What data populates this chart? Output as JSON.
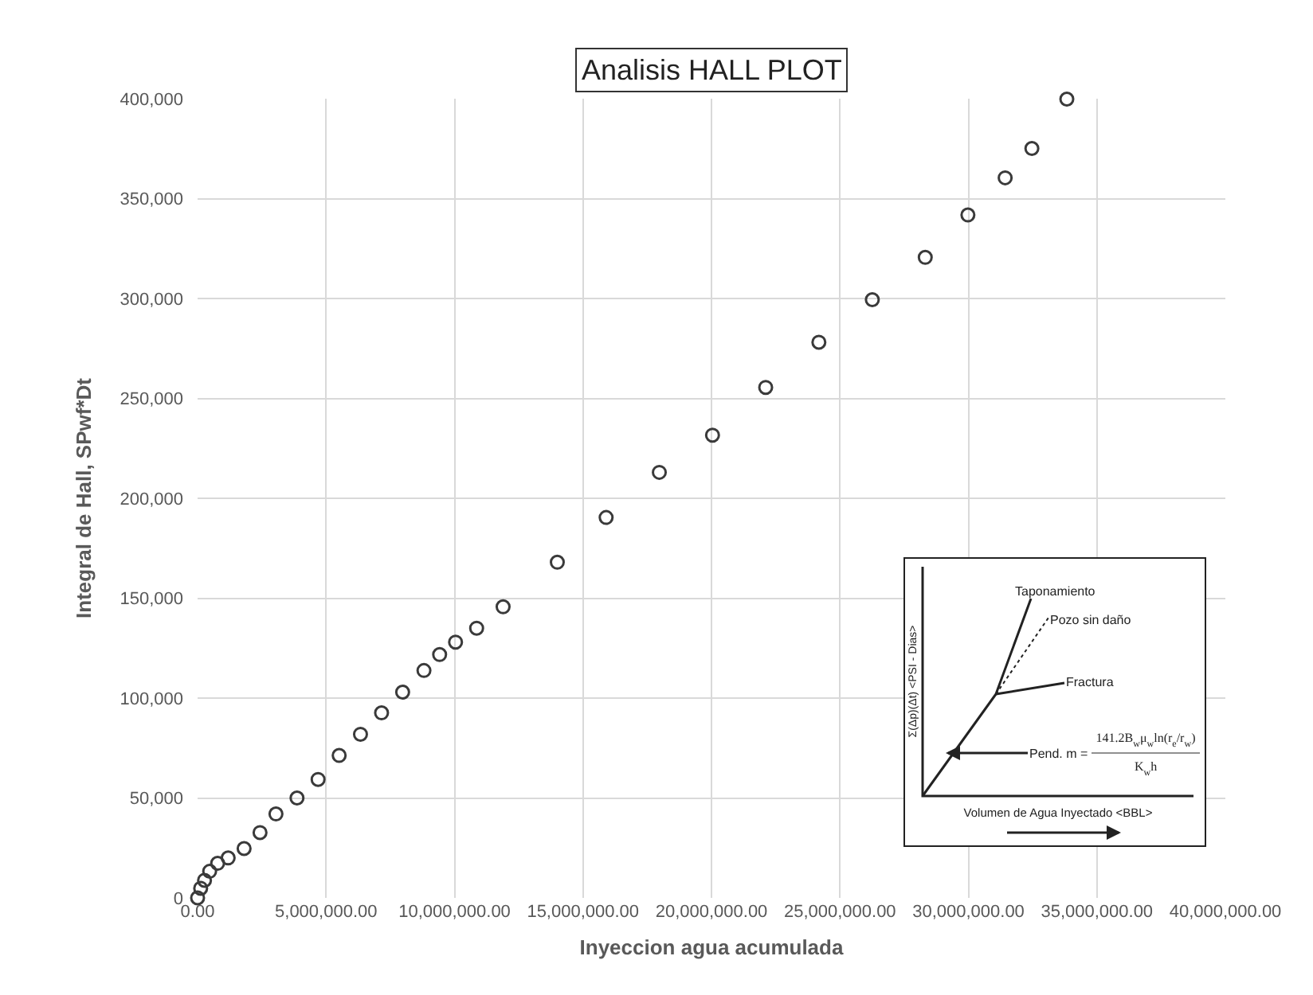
{
  "chart_data": {
    "type": "scatter",
    "title": "Analisis HALL PLOT",
    "xlabel": "Inyeccion agua acumulada",
    "ylabel": "Integral de Hall, SPwf*Dt",
    "x": [
      0,
      120000.0,
      270000.0,
      470000.0,
      780000.0,
      1190000.0,
      1810000.0,
      2430000.0,
      3050000.0,
      3870000.0,
      4690000.0,
      5510000.0,
      6340000.0,
      7160000.0,
      7980000.0,
      8810000.0,
      9420000.0,
      10040000.0,
      10860000.0,
      11890000.0,
      14000000.0,
      15900000.0,
      17970000.0,
      20040000.0,
      22110000.0,
      24180000.0,
      26260000.0,
      28320000.0,
      29980000.0,
      31430000.0,
      32470000.0,
      33830000.0
    ],
    "series": [
      {
        "color": "#3a3a3a",
        "values": [
          0,
          4800,
          8800,
          13300,
          17300,
          20000,
          24700,
          32700,
          42000,
          50000,
          59300,
          71300,
          81900,
          92600,
          103000,
          113800,
          121800,
          128000,
          135000,
          145700,
          168000,
          190400,
          213000,
          231600,
          255500,
          278100,
          299400,
          320600,
          341800,
          360400,
          375100,
          399800
        ]
      }
    ],
    "marker": "circle",
    "grid": true,
    "xlim": [
      0,
      40000000
    ],
    "ylim": [
      0,
      400000
    ],
    "xticks": [
      {
        "value": 0,
        "label": "0.00"
      },
      {
        "value": 5000000,
        "label": "5,000,000.00"
      },
      {
        "value": 10000000,
        "label": "10,000,000.00"
      },
      {
        "value": 15000000,
        "label": "15,000,000.00"
      },
      {
        "value": 20000000,
        "label": "20,000,000.00"
      },
      {
        "value": 25000000,
        "label": "25,000,000.00"
      },
      {
        "value": 30000000,
        "label": "30,000,000.00"
      },
      {
        "value": 35000000,
        "label": "35,000,000.00"
      },
      {
        "value": 40000000,
        "label": "40,000,000.00"
      }
    ],
    "yticks": [
      0,
      {
        "value": 50000,
        "label": "50,000"
      },
      {
        "value": 100000,
        "label": "100,000"
      },
      {
        "value": 150000,
        "label": "150,000"
      },
      {
        "value": 200000,
        "label": "200,000"
      },
      {
        "value": 250000,
        "label": "250,000"
      },
      {
        "value": 300000,
        "label": "300,000"
      },
      {
        "value": 350000,
        "label": "350,000"
      },
      {
        "value": 400000,
        "label": "400,000"
      }
    ],
    "annotations": [
      "Taponamiento",
      "Pozo sin daño",
      "Fractura",
      "Pend. m =",
      "141.2B$_{w}$μ$_{w}$ln(r$_{e}$/r$_{w}$)",
      "K$_{w}$h",
      "Σ(Δp)(Δt) <PSI - Dias>",
      "Volumen de Agua Inyectado <BBL>"
    ]
  }
}
